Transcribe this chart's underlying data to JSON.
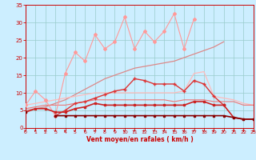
{
  "x": [
    0,
    1,
    2,
    3,
    4,
    5,
    6,
    7,
    8,
    9,
    10,
    11,
    12,
    13,
    14,
    15,
    16,
    17,
    18,
    19,
    20,
    21,
    22,
    23
  ],
  "series": [
    {
      "name": "rafales_peak",
      "color": "#ff9999",
      "lw": 0.8,
      "marker": "D",
      "ms": 2.0,
      "zorder": 3,
      "y": [
        6.5,
        10.5,
        8.0,
        3.5,
        15.5,
        21.5,
        19.0,
        26.5,
        22.5,
        24.5,
        31.5,
        22.5,
        27.5,
        24.5,
        27.5,
        32.5,
        22.5,
        31.0,
        null,
        null,
        null,
        null,
        null,
        null
      ]
    },
    {
      "name": "linear_diagonal",
      "color": "#dd8888",
      "lw": 0.9,
      "marker": null,
      "ms": 0,
      "zorder": 2,
      "y": [
        5.0,
        5.5,
        6.0,
        7.0,
        8.0,
        9.5,
        11.0,
        12.5,
        14.0,
        15.0,
        16.0,
        17.0,
        17.5,
        18.0,
        18.5,
        19.0,
        20.0,
        21.0,
        22.0,
        23.0,
        24.5,
        null,
        null,
        null
      ]
    },
    {
      "name": "medium_flat_pink",
      "color": "#ffbbbb",
      "lw": 0.9,
      "marker": null,
      "ms": 0,
      "zorder": 2,
      "y": [
        6.5,
        7.0,
        7.5,
        8.0,
        8.5,
        9.0,
        9.5,
        10.0,
        10.0,
        10.0,
        10.0,
        10.0,
        10.0,
        10.0,
        10.0,
        10.0,
        10.5,
        15.5,
        16.0,
        9.0,
        8.5,
        8.0,
        7.0,
        6.5
      ]
    },
    {
      "name": "medium_marker",
      "color": "#dd3333",
      "lw": 1.0,
      "marker": "+",
      "ms": 3.0,
      "zorder": 4,
      "y": [
        null,
        null,
        null,
        3.5,
        5.0,
        7.0,
        7.5,
        8.5,
        9.5,
        10.5,
        11.0,
        14.0,
        13.5,
        12.5,
        12.5,
        12.5,
        10.5,
        13.5,
        12.5,
        9.0,
        6.5,
        null,
        null,
        null
      ]
    },
    {
      "name": "flat_band_upper",
      "color": "#ee7777",
      "lw": 0.8,
      "marker": null,
      "ms": 0,
      "zorder": 2,
      "y": [
        5.5,
        6.0,
        6.5,
        6.5,
        6.5,
        7.0,
        7.5,
        8.0,
        8.0,
        8.0,
        8.0,
        8.0,
        8.0,
        8.0,
        8.0,
        7.5,
        8.0,
        8.0,
        8.0,
        7.5,
        7.5,
        7.5,
        6.5,
        6.5
      ]
    },
    {
      "name": "flat_marker_red",
      "color": "#cc2222",
      "lw": 1.2,
      "marker": "s",
      "ms": 1.8,
      "zorder": 4,
      "y": [
        4.5,
        5.5,
        5.5,
        4.5,
        4.5,
        5.5,
        6.0,
        7.0,
        6.5,
        6.5,
        6.5,
        6.5,
        6.5,
        6.5,
        6.5,
        6.5,
        6.5,
        7.5,
        7.5,
        6.5,
        6.5,
        3.0,
        2.5,
        2.5
      ]
    },
    {
      "name": "bottom_dark",
      "color": "#880000",
      "lw": 1.2,
      "marker": "s",
      "ms": 1.8,
      "zorder": 4,
      "y": [
        4.5,
        null,
        null,
        3.5,
        3.5,
        3.5,
        3.5,
        3.5,
        3.5,
        3.5,
        3.5,
        3.5,
        3.5,
        3.5,
        3.5,
        3.5,
        3.5,
        3.5,
        3.5,
        3.5,
        3.5,
        3.0,
        2.5,
        2.5
      ]
    }
  ],
  "xlim": [
    0,
    23
  ],
  "ylim": [
    0,
    35
  ],
  "yticks": [
    0,
    5,
    10,
    15,
    20,
    25,
    30,
    35
  ],
  "xticks": [
    0,
    1,
    2,
    3,
    4,
    5,
    6,
    7,
    8,
    9,
    10,
    11,
    12,
    13,
    14,
    15,
    16,
    17,
    18,
    19,
    20,
    21,
    22,
    23
  ],
  "xlabel": "Vent moyen/en rafales ( km/h )",
  "bg_color": "#cceeff",
  "grid_color": "#99cccc",
  "text_color": "#cc0000",
  "fig_width": 3.2,
  "fig_height": 2.0,
  "dpi": 100
}
